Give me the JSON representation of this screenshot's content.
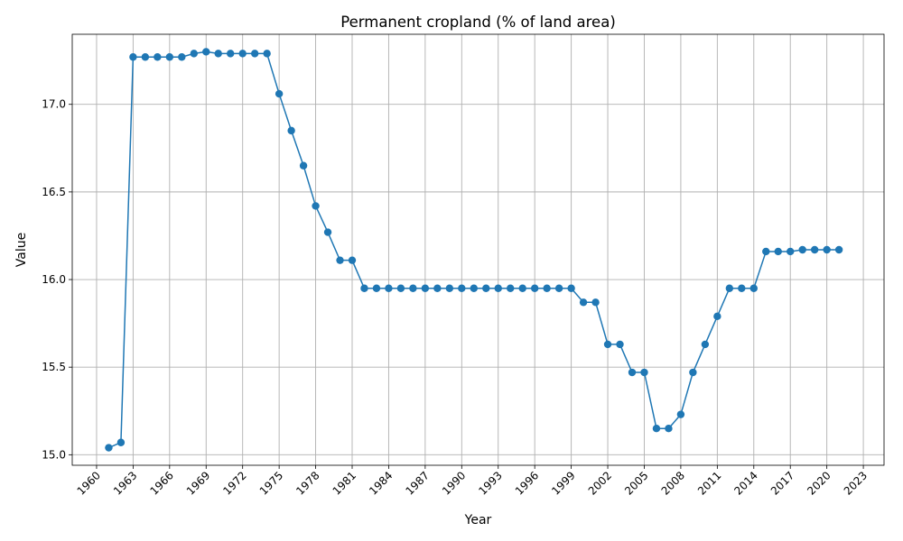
{
  "chart_data": {
    "type": "line",
    "title": "Permanent cropland (% of land area)",
    "xlabel": "Year",
    "ylabel": "Value",
    "xlim": [
      1958.0,
      2024.7
    ],
    "ylim": [
      14.94,
      17.4
    ],
    "x_ticks": [
      1960,
      1963,
      1966,
      1969,
      1972,
      1975,
      1978,
      1981,
      1984,
      1987,
      1990,
      1993,
      1996,
      1999,
      2002,
      2005,
      2008,
      2011,
      2014,
      2017,
      2020,
      2023
    ],
    "y_ticks": [
      15.0,
      15.5,
      16.0,
      16.5,
      17.0
    ],
    "y_tick_labels": [
      "15.0",
      "15.5",
      "16.0",
      "16.5",
      "17.0"
    ],
    "grid": true,
    "color": "#1f77b4",
    "marker": "circle",
    "x": [
      1961,
      1962,
      1963,
      1964,
      1965,
      1966,
      1967,
      1968,
      1969,
      1970,
      1971,
      1972,
      1973,
      1974,
      1975,
      1976,
      1977,
      1978,
      1979,
      1980,
      1981,
      1982,
      1983,
      1984,
      1985,
      1986,
      1987,
      1988,
      1989,
      1990,
      1991,
      1992,
      1993,
      1994,
      1995,
      1996,
      1997,
      1998,
      1999,
      2000,
      2001,
      2002,
      2003,
      2004,
      2005,
      2006,
      2007,
      2008,
      2009,
      2010,
      2011,
      2012,
      2013,
      2014,
      2015,
      2016,
      2017,
      2018,
      2019,
      2020,
      2021
    ],
    "y": [
      15.04,
      15.07,
      17.27,
      17.27,
      17.27,
      17.27,
      17.27,
      17.29,
      17.3,
      17.29,
      17.29,
      17.29,
      17.29,
      17.29,
      17.06,
      16.85,
      16.65,
      16.42,
      16.27,
      16.11,
      16.11,
      15.95,
      15.95,
      15.95,
      15.95,
      15.95,
      15.95,
      15.95,
      15.95,
      15.95,
      15.95,
      15.95,
      15.95,
      15.95,
      15.95,
      15.95,
      15.95,
      15.95,
      15.95,
      15.87,
      15.87,
      15.63,
      15.63,
      15.47,
      15.47,
      15.15,
      15.15,
      15.23,
      15.47,
      15.63,
      15.79,
      15.95,
      15.95,
      15.95,
      16.16,
      16.16,
      16.16,
      16.17,
      16.17,
      16.17,
      16.17
    ]
  }
}
